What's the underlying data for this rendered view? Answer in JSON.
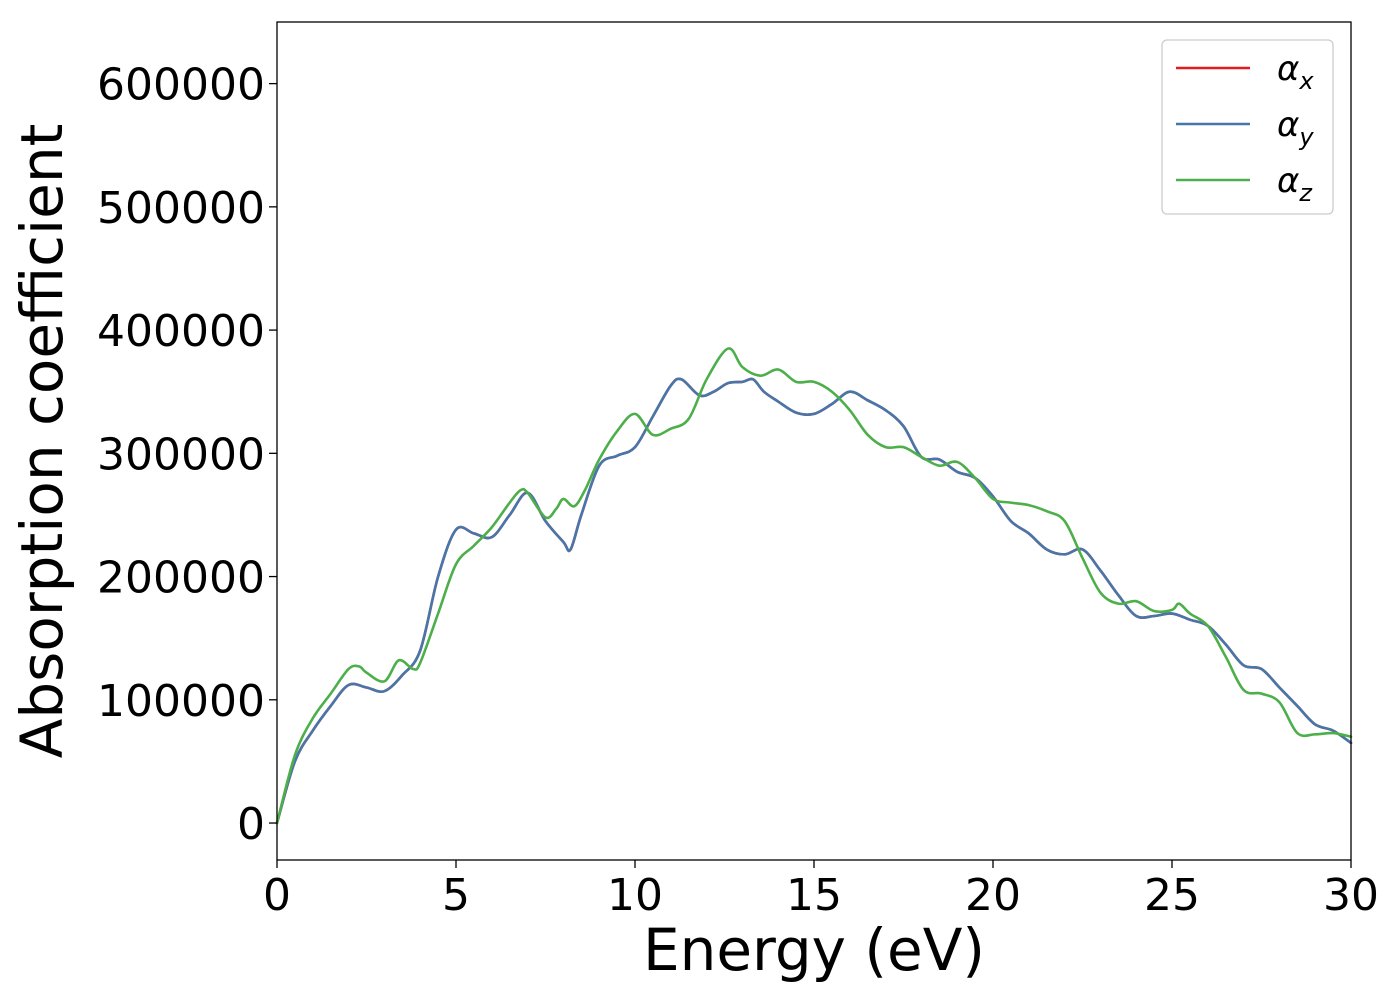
{
  "chart_data": {
    "type": "line",
    "title": "",
    "xlabel": "Energy (eV)",
    "ylabel": "Absorption coefficient",
    "xlim": [
      0,
      30
    ],
    "ylim": [
      -30000,
      650000
    ],
    "x_ticks": [
      0,
      5,
      10,
      15,
      20,
      25,
      30
    ],
    "y_ticks": [
      0,
      100000,
      200000,
      300000,
      400000,
      500000,
      600000
    ],
    "x_tick_labels": [
      "0",
      "5",
      "10",
      "15",
      "20",
      "25",
      "30"
    ],
    "y_tick_labels": [
      "0",
      "100000",
      "200000",
      "300000",
      "400000",
      "500000",
      "600000"
    ],
    "grid": false,
    "legend_position": "top-right",
    "series": [
      {
        "name": "α_x",
        "legend_base": "α",
        "legend_sub": "x",
        "color": "#e41a1c",
        "x": [
          0,
          0.5,
          1,
          1.5,
          2,
          2.5,
          3,
          3.5,
          4,
          4.5,
          5,
          5.5,
          6,
          6.5,
          7,
          7.5,
          8,
          8.2,
          8.5,
          9,
          9.5,
          10,
          10.5,
          11,
          11.3,
          11.8,
          12.2,
          12.6,
          13,
          13.3,
          13.6,
          14,
          14.5,
          15,
          15.5,
          16,
          16.5,
          17,
          17.5,
          18,
          18.5,
          19,
          19.5,
          20,
          20.5,
          21,
          21.5,
          22,
          22.5,
          23,
          23.5,
          24,
          24.5,
          25,
          25.5,
          26,
          26.5,
          27,
          27.5,
          28,
          28.5,
          29,
          29.5,
          30
        ],
        "y": [
          0,
          50000,
          75000,
          95000,
          112000,
          110000,
          107000,
          120000,
          140000,
          200000,
          238000,
          235000,
          232000,
          250000,
          268000,
          245000,
          228000,
          222000,
          250000,
          290000,
          298000,
          305000,
          330000,
          355000,
          360000,
          347000,
          350000,
          357000,
          358000,
          360000,
          350000,
          342000,
          333000,
          332000,
          340000,
          350000,
          343000,
          335000,
          322000,
          297000,
          295000,
          285000,
          280000,
          265000,
          245000,
          235000,
          222000,
          218000,
          222000,
          205000,
          185000,
          168000,
          168000,
          170000,
          165000,
          160000,
          145000,
          128000,
          125000,
          110000,
          95000,
          80000,
          75000,
          65000
        ]
      },
      {
        "name": "α_y",
        "legend_base": "α",
        "legend_sub": "y",
        "color": "#4577aa",
        "x": [
          0,
          0.5,
          1,
          1.5,
          2,
          2.5,
          3,
          3.5,
          4,
          4.5,
          5,
          5.5,
          6,
          6.5,
          7,
          7.5,
          8,
          8.2,
          8.5,
          9,
          9.5,
          10,
          10.5,
          11,
          11.3,
          11.8,
          12.2,
          12.6,
          13,
          13.3,
          13.6,
          14,
          14.5,
          15,
          15.5,
          16,
          16.5,
          17,
          17.5,
          18,
          18.5,
          19,
          19.5,
          20,
          20.5,
          21,
          21.5,
          22,
          22.5,
          23,
          23.5,
          24,
          24.5,
          25,
          25.5,
          26,
          26.5,
          27,
          27.5,
          28,
          28.5,
          29,
          29.5,
          30
        ],
        "y": [
          0,
          50000,
          75000,
          95000,
          112000,
          110000,
          107000,
          120000,
          140000,
          200000,
          238000,
          235000,
          232000,
          250000,
          268000,
          245000,
          228000,
          222000,
          250000,
          290000,
          298000,
          305000,
          330000,
          355000,
          360000,
          347000,
          350000,
          357000,
          358000,
          360000,
          350000,
          342000,
          333000,
          332000,
          340000,
          350000,
          343000,
          335000,
          322000,
          297000,
          295000,
          285000,
          280000,
          265000,
          245000,
          235000,
          222000,
          218000,
          222000,
          205000,
          185000,
          168000,
          168000,
          170000,
          165000,
          160000,
          145000,
          128000,
          125000,
          110000,
          95000,
          80000,
          75000,
          65000
        ]
      },
      {
        "name": "α_z",
        "legend_base": "α",
        "legend_sub": "z",
        "color": "#4daf4a",
        "x": [
          0,
          0.5,
          1,
          1.5,
          2,
          2.3,
          2.5,
          3,
          3.4,
          3.8,
          4,
          4.5,
          5,
          5.5,
          6,
          6.5,
          6.8,
          7,
          7.5,
          7.8,
          8,
          8.3,
          8.6,
          9,
          9.5,
          10,
          10.5,
          11,
          11.5,
          12,
          12.6,
          13,
          13.5,
          14,
          14.5,
          15,
          15.5,
          16,
          16.5,
          17,
          17.5,
          18,
          18.5,
          19,
          19.5,
          20,
          20.5,
          21,
          21.5,
          22,
          22.5,
          23,
          23.5,
          24,
          24.5,
          25,
          25.2,
          25.5,
          26,
          26.5,
          27,
          27.5,
          28,
          28.5,
          29,
          29.5,
          30
        ],
        "y": [
          0,
          55000,
          85000,
          105000,
          125000,
          127000,
          122000,
          115000,
          132000,
          125000,
          130000,
          170000,
          210000,
          225000,
          240000,
          260000,
          270000,
          268000,
          248000,
          255000,
          263000,
          257000,
          270000,
          295000,
          318000,
          332000,
          315000,
          320000,
          328000,
          360000,
          385000,
          370000,
          363000,
          368000,
          358000,
          358000,
          350000,
          335000,
          315000,
          305000,
          305000,
          297000,
          290000,
          293000,
          280000,
          263000,
          260000,
          258000,
          253000,
          245000,
          215000,
          187000,
          178000,
          180000,
          172000,
          173000,
          178000,
          170000,
          160000,
          135000,
          108000,
          105000,
          98000,
          73000,
          72000,
          73000,
          70000
        ]
      }
    ]
  }
}
